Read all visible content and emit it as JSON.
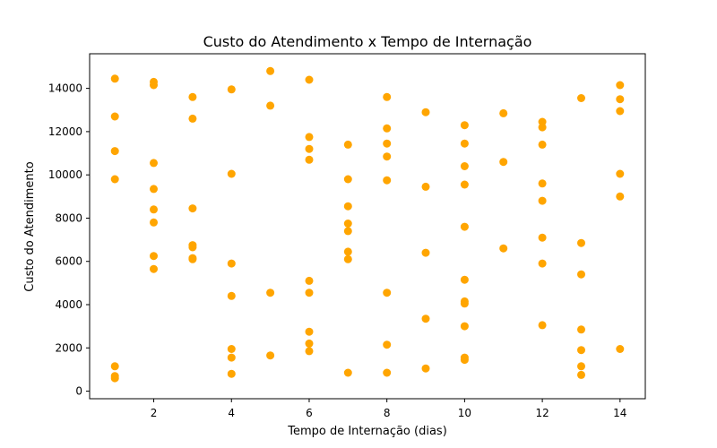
{
  "chart_data": {
    "type": "scatter",
    "title": "Custo do Atendimento x Tempo de Internação",
    "xlabel": "Tempo de Internação (dias)",
    "ylabel": "Custo do Atendimento",
    "xlim": [
      0.35,
      14.65
    ],
    "ylim": [
      -350,
      15600
    ],
    "xticks": [
      2,
      4,
      6,
      8,
      10,
      12,
      14
    ],
    "yticks": [
      0,
      2000,
      4000,
      6000,
      8000,
      10000,
      12000,
      14000
    ],
    "grid": false,
    "marker_color": "#FFA500",
    "points": [
      [
        1,
        14450
      ],
      [
        1,
        12700
      ],
      [
        1,
        11100
      ],
      [
        1,
        9800
      ],
      [
        1,
        1150
      ],
      [
        1,
        700
      ],
      [
        1,
        600
      ],
      [
        2,
        14300
      ],
      [
        2,
        14150
      ],
      [
        2,
        10550
      ],
      [
        2,
        9350
      ],
      [
        2,
        8400
      ],
      [
        2,
        7800
      ],
      [
        2,
        6250
      ],
      [
        2,
        5650
      ],
      [
        3,
        13600
      ],
      [
        3,
        12600
      ],
      [
        3,
        8450
      ],
      [
        3,
        6750
      ],
      [
        3,
        6650
      ],
      [
        3,
        6150
      ],
      [
        3,
        6100
      ],
      [
        4,
        13950
      ],
      [
        4,
        10050
      ],
      [
        4,
        5900
      ],
      [
        4,
        4400
      ],
      [
        4,
        1950
      ],
      [
        4,
        1550
      ],
      [
        4,
        800
      ],
      [
        5,
        14800
      ],
      [
        5,
        13200
      ],
      [
        5,
        4550
      ],
      [
        5,
        1650
      ],
      [
        6,
        14400
      ],
      [
        6,
        11750
      ],
      [
        6,
        11200
      ],
      [
        6,
        10700
      ],
      [
        6,
        5100
      ],
      [
        6,
        4550
      ],
      [
        6,
        2750
      ],
      [
        6,
        2200
      ],
      [
        6,
        1850
      ],
      [
        7,
        11400
      ],
      [
        7,
        9800
      ],
      [
        7,
        8550
      ],
      [
        7,
        7750
      ],
      [
        7,
        7400
      ],
      [
        7,
        6450
      ],
      [
        7,
        6100
      ],
      [
        7,
        850
      ],
      [
        8,
        13600
      ],
      [
        8,
        12150
      ],
      [
        8,
        11450
      ],
      [
        8,
        10850
      ],
      [
        8,
        9750
      ],
      [
        8,
        4550
      ],
      [
        8,
        2150
      ],
      [
        8,
        850
      ],
      [
        9,
        12900
      ],
      [
        9,
        9450
      ],
      [
        9,
        6400
      ],
      [
        9,
        3350
      ],
      [
        9,
        1050
      ],
      [
        10,
        12300
      ],
      [
        10,
        11450
      ],
      [
        10,
        10400
      ],
      [
        10,
        9550
      ],
      [
        10,
        7600
      ],
      [
        10,
        5150
      ],
      [
        10,
        4150
      ],
      [
        10,
        4050
      ],
      [
        10,
        3000
      ],
      [
        10,
        1550
      ],
      [
        10,
        1450
      ],
      [
        11,
        12850
      ],
      [
        11,
        10600
      ],
      [
        11,
        6600
      ],
      [
        12,
        12450
      ],
      [
        12,
        12200
      ],
      [
        12,
        11400
      ],
      [
        12,
        9600
      ],
      [
        12,
        8800
      ],
      [
        12,
        7100
      ],
      [
        12,
        5900
      ],
      [
        12,
        3050
      ],
      [
        13,
        13550
      ],
      [
        13,
        6850
      ],
      [
        13,
        5400
      ],
      [
        13,
        2850
      ],
      [
        13,
        1900
      ],
      [
        13,
        1150
      ],
      [
        13,
        750
      ],
      [
        14,
        14150
      ],
      [
        14,
        13500
      ],
      [
        14,
        12950
      ],
      [
        14,
        10050
      ],
      [
        14,
        9000
      ],
      [
        14,
        1950
      ]
    ]
  }
}
